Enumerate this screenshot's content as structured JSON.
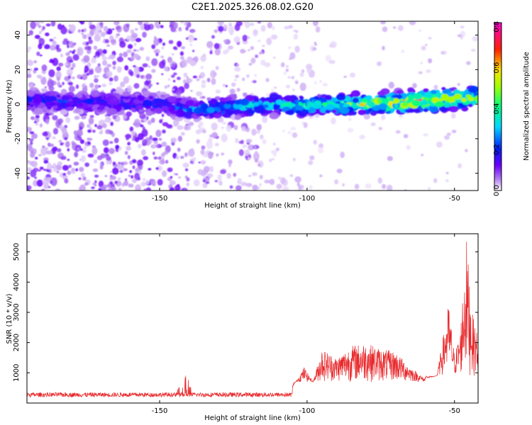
{
  "page_title": "C2E1.2025.326.08.02.G20",
  "chart_data": [
    {
      "type": "heatmap",
      "title": "C2E1.2025.326.08.02.G20",
      "xlabel": "Height of straight line (km)",
      "ylabel": "Frequency (Hz)",
      "xlim": [
        -195,
        -42
      ],
      "ylim": [
        -50,
        48
      ],
      "x_ticks": [
        -150,
        -100,
        -50
      ],
      "y_ticks": [
        -40,
        -20,
        0,
        20,
        40
      ],
      "colorbar": {
        "label": "Normalized spectral amplitude",
        "range": [
          0,
          0.82
        ],
        "ticks": [
          0.0,
          0.2,
          0.4,
          0.6,
          0.8
        ],
        "colormap": "white-purple-blue-cyan-green-yellow-red-magenta"
      },
      "ridge": {
        "description_free": true,
        "x": [
          -195,
          -170,
          -150,
          -140,
          -130,
          -120,
          -110,
          -100,
          -90,
          -80,
          -70,
          -60,
          -50,
          -42
        ],
        "frequency": [
          2,
          1,
          0,
          -3,
          -2,
          -1,
          0,
          -1,
          0,
          0,
          1,
          2,
          3,
          4
        ],
        "amplitude": [
          0.22,
          0.2,
          0.22,
          0.28,
          0.3,
          0.32,
          0.36,
          0.38,
          0.45,
          0.55,
          0.62,
          0.7,
          0.6,
          0.5
        ]
      }
    },
    {
      "type": "line",
      "title": "",
      "xlabel": "Height of straight line (km)",
      "ylabel": "SNR (10 * v/v)",
      "xlim": [
        -195,
        -42
      ],
      "ylim": [
        0,
        5600
      ],
      "x_ticks": [
        -150,
        -100,
        -50
      ],
      "y_ticks": [
        1000,
        2000,
        3000,
        4000,
        5000
      ],
      "series": [
        {
          "color": "#e8282b",
          "x": [
            -195,
            -185,
            -175,
            -165,
            -155,
            -145,
            -141,
            -139,
            -135,
            -125,
            -115,
            -105,
            -101,
            -98,
            -95,
            -90,
            -85,
            -80,
            -75,
            -70,
            -65,
            -60,
            -56,
            -52,
            -50,
            -48,
            -46,
            -44,
            -42
          ],
          "y": [
            300,
            320,
            310,
            300,
            300,
            320,
            1050,
            350,
            330,
            350,
            400,
            500,
            1200,
            700,
            1800,
            1500,
            1900,
            2000,
            1800,
            1700,
            1200,
            800,
            900,
            3300,
            1600,
            2400,
            5500,
            3000,
            2200
          ]
        }
      ]
    }
  ]
}
